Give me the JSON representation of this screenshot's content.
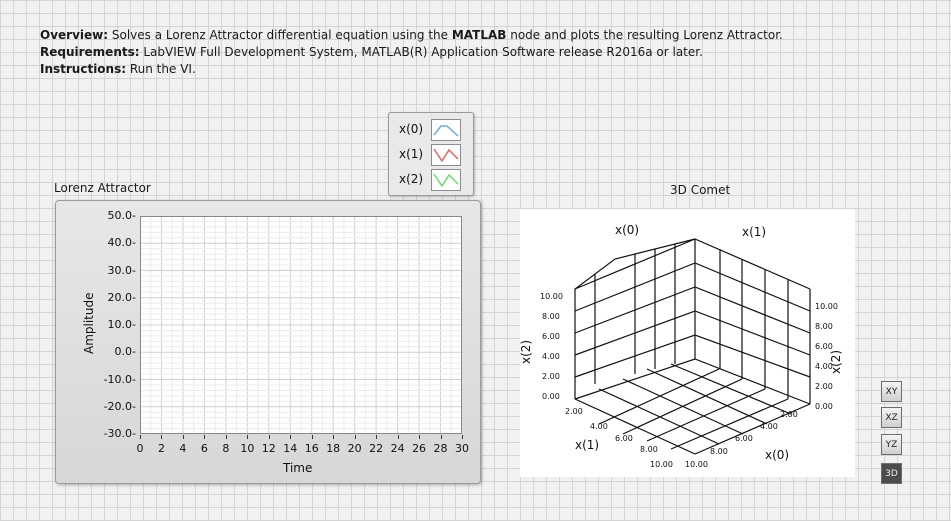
{
  "description": {
    "overview_label": "Overview:",
    "overview_text_1": " Solves a Lorenz Attractor differential equation using the ",
    "overview_bold": "MATLAB",
    "overview_text_2": " node and plots the resulting Lorenz Attractor.",
    "requirements_label": "Requirements:",
    "requirements_text": " LabVIEW Full Development System, MATLAB(R) Application Software release R2016a or later.",
    "instructions_label": "Instructions:",
    "instructions_text": " Run the VI."
  },
  "legend": {
    "items": [
      {
        "label": "x(0)",
        "color": "#6fa8dc"
      },
      {
        "label": "x(1)",
        "color": "#e06666"
      },
      {
        "label": "x(2)",
        "color": "#6ddc6d"
      }
    ]
  },
  "chart_data": [
    {
      "type": "line",
      "title": "Lorenz Attractor",
      "xlabel": "Time",
      "ylabel": "Amplitude",
      "xlim": [
        0,
        30
      ],
      "ylim": [
        -30,
        50
      ],
      "x_ticks": [
        "0",
        "2",
        "4",
        "6",
        "8",
        "10",
        "12",
        "14",
        "16",
        "18",
        "20",
        "22",
        "24",
        "26",
        "28",
        "30"
      ],
      "y_ticks": [
        "50.0",
        "40.0",
        "30.0",
        "20.0",
        "10.0",
        "0.0",
        "-10.0",
        "-20.0",
        "-30.0"
      ],
      "series": [
        {
          "name": "x(0)",
          "values": []
        },
        {
          "name": "x(1)",
          "values": []
        },
        {
          "name": "x(2)",
          "values": []
        }
      ],
      "grid": true
    },
    {
      "type": "scatter",
      "title": "3D Comet",
      "axes": {
        "x0": {
          "label": "x(0)",
          "ticks": [
            "2.00",
            "4.00",
            "6.00",
            "8.00",
            "10.00"
          ]
        },
        "x1": {
          "label": "x(1)",
          "ticks": [
            "2.00",
            "4.00",
            "6.00",
            "8.00",
            "10.00"
          ]
        },
        "x2": {
          "label": "x(2)",
          "ticks": [
            "0.00",
            "2.00",
            "4.00",
            "6.00",
            "8.00",
            "10.00"
          ]
        }
      },
      "grid": true
    }
  ],
  "projection_buttons": [
    {
      "label": "XY",
      "icon": "xy-plane-icon"
    },
    {
      "label": "XZ",
      "icon": "xz-plane-icon"
    },
    {
      "label": "YZ",
      "icon": "yz-plane-icon"
    },
    {
      "label": "3D",
      "icon": "3d-view-icon"
    }
  ]
}
